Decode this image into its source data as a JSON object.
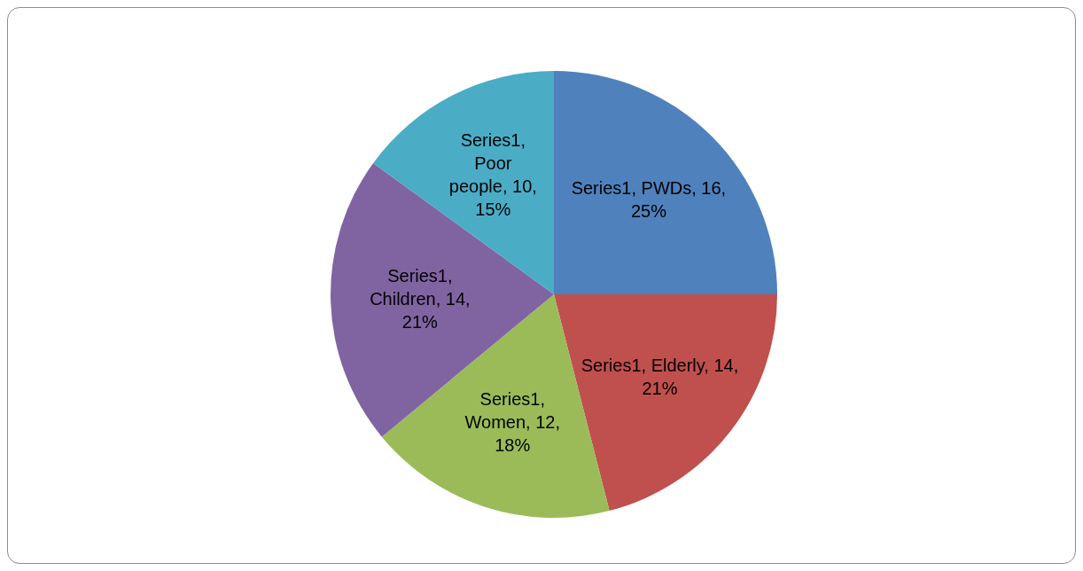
{
  "chart_data": {
    "type": "pie",
    "categories": [
      null,
      null,
      null,
      null,
      null
    ],
    "series": [
      {
        "values": [
          25,
          21,
          18,
          21,
          15
        ],
        "colors": [
          "#4f81bd",
          "#c0504d",
          "#9bbb59",
          "#8064a2",
          "#4bacc6"
        ]
      }
    ],
    "value_labels": [
      "Series1, PWDs, 16, 25%",
      "Series1, Elderly, 14, 21%",
      "Series1, Women, 12, 18%",
      "Series1, Children, 14, 21%",
      "Series1, Poor people, 10, 15%"
    ],
    "legend": false
  }
}
